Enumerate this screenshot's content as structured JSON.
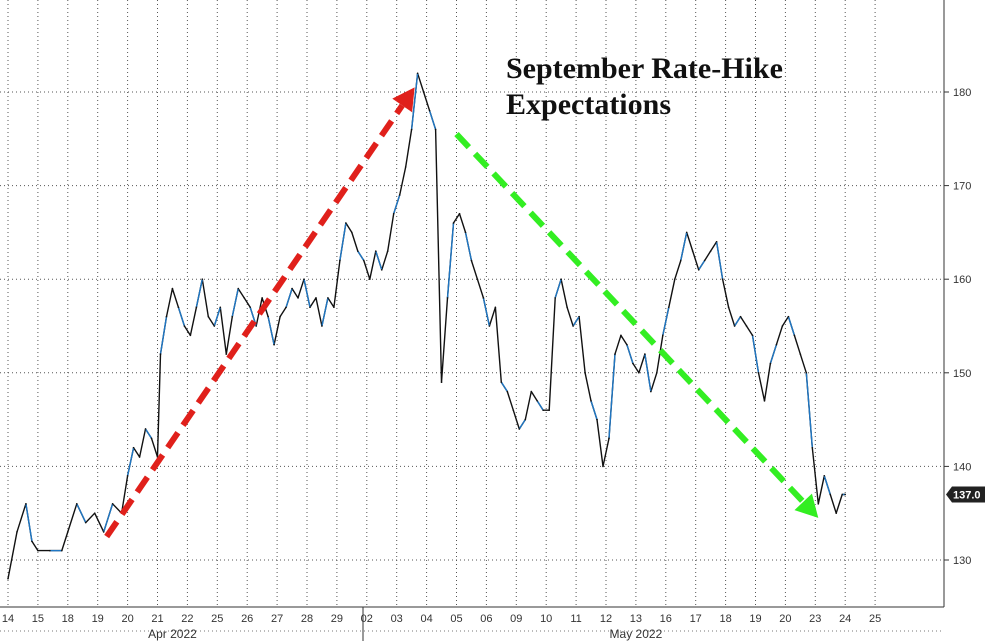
{
  "chart_data": {
    "type": "line",
    "title_lines": [
      "September Rate-Hike",
      "Expectations"
    ],
    "xlabel": "",
    "ylabel": "",
    "ylim": [
      125,
      190
    ],
    "yticks": [
      130,
      140,
      150,
      160,
      170,
      180,
      190
    ],
    "grid": true,
    "x_tick_labels": [
      "14",
      "15",
      "18",
      "19",
      "20",
      "21",
      "22",
      "25",
      "26",
      "27",
      "28",
      "29",
      "02",
      "03",
      "04",
      "05",
      "06",
      "09",
      "10",
      "11",
      "12",
      "13",
      "16",
      "17",
      "18",
      "19",
      "20",
      "23",
      "24",
      "25"
    ],
    "month_labels": [
      {
        "label": "Apr 2022",
        "at_tick": 5.5
      },
      {
        "label": "May 2022",
        "at_tick": 21
      }
    ],
    "last_value": 137.0,
    "last_value_label": "137.0",
    "colors": {
      "line_dark": "#111111",
      "line_blue": "#1f77c4",
      "grid": "#555555",
      "up_arrow": "#e0201b",
      "down_arrow": "#33ee22",
      "last_badge": "#222222"
    },
    "series": [
      {
        "values": [
          [
            0,
            128
          ],
          [
            0.3,
            133
          ],
          [
            0.6,
            136
          ],
          [
            0.8,
            132
          ],
          [
            1.0,
            131
          ],
          [
            1.4,
            131
          ],
          [
            1.8,
            131
          ],
          [
            2.0,
            133
          ],
          [
            2.3,
            136
          ],
          [
            2.6,
            134
          ],
          [
            2.9,
            135
          ],
          [
            3.2,
            133
          ],
          [
            3.5,
            136
          ],
          [
            3.8,
            135
          ],
          [
            4.0,
            139
          ],
          [
            4.2,
            142
          ],
          [
            4.4,
            141
          ],
          [
            4.6,
            144
          ],
          [
            4.8,
            143
          ],
          [
            5.0,
            141
          ],
          [
            5.1,
            152
          ],
          [
            5.3,
            156
          ],
          [
            5.5,
            159
          ],
          [
            5.7,
            157
          ],
          [
            5.9,
            155
          ],
          [
            6.1,
            154
          ],
          [
            6.3,
            157
          ],
          [
            6.5,
            160
          ],
          [
            6.7,
            156
          ],
          [
            6.9,
            155
          ],
          [
            7.1,
            157
          ],
          [
            7.3,
            152
          ],
          [
            7.5,
            156
          ],
          [
            7.7,
            159
          ],
          [
            7.9,
            158
          ],
          [
            8.1,
            157
          ],
          [
            8.3,
            155
          ],
          [
            8.5,
            158
          ],
          [
            8.7,
            156
          ],
          [
            8.9,
            153
          ],
          [
            9.1,
            156
          ],
          [
            9.3,
            157
          ],
          [
            9.5,
            159
          ],
          [
            9.7,
            158
          ],
          [
            9.9,
            160
          ],
          [
            10.1,
            157
          ],
          [
            10.3,
            158
          ],
          [
            10.5,
            155
          ],
          [
            10.7,
            158
          ],
          [
            10.9,
            157
          ],
          [
            11.1,
            162
          ],
          [
            11.3,
            166
          ],
          [
            11.5,
            165
          ],
          [
            11.7,
            163
          ],
          [
            11.9,
            162
          ],
          [
            12.1,
            160
          ],
          [
            12.3,
            163
          ],
          [
            12.5,
            161
          ],
          [
            12.7,
            163
          ],
          [
            12.9,
            167
          ],
          [
            13.1,
            169
          ],
          [
            13.3,
            172
          ],
          [
            13.5,
            176
          ],
          [
            13.7,
            182
          ],
          [
            13.9,
            180
          ],
          [
            14.1,
            178
          ],
          [
            14.3,
            176
          ],
          [
            14.5,
            149
          ],
          [
            14.7,
            158
          ],
          [
            14.9,
            166
          ],
          [
            15.1,
            167
          ],
          [
            15.3,
            165
          ],
          [
            15.5,
            162
          ],
          [
            15.7,
            160
          ],
          [
            15.9,
            158
          ],
          [
            16.1,
            155
          ],
          [
            16.3,
            157
          ],
          [
            16.5,
            149
          ],
          [
            16.7,
            148
          ],
          [
            16.9,
            146
          ],
          [
            17.1,
            144
          ],
          [
            17.3,
            145
          ],
          [
            17.5,
            148
          ],
          [
            17.7,
            147
          ],
          [
            17.9,
            146
          ],
          [
            18.1,
            146
          ],
          [
            18.3,
            158
          ],
          [
            18.5,
            160
          ],
          [
            18.7,
            157
          ],
          [
            18.9,
            155
          ],
          [
            19.1,
            156
          ],
          [
            19.3,
            150
          ],
          [
            19.5,
            147
          ],
          [
            19.7,
            145
          ],
          [
            19.9,
            140
          ],
          [
            20.1,
            143
          ],
          [
            20.3,
            152
          ],
          [
            20.5,
            154
          ],
          [
            20.7,
            153
          ],
          [
            20.9,
            151
          ],
          [
            21.1,
            150
          ],
          [
            21.3,
            152
          ],
          [
            21.5,
            148
          ],
          [
            21.7,
            150
          ],
          [
            21.9,
            154
          ],
          [
            22.1,
            157
          ],
          [
            22.3,
            160
          ],
          [
            22.5,
            162
          ],
          [
            22.7,
            165
          ],
          [
            22.9,
            163
          ],
          [
            23.1,
            161
          ],
          [
            23.3,
            162
          ],
          [
            23.5,
            163
          ],
          [
            23.7,
            164
          ],
          [
            23.9,
            160
          ],
          [
            24.1,
            157
          ],
          [
            24.3,
            155
          ],
          [
            24.5,
            156
          ],
          [
            24.7,
            155
          ],
          [
            24.9,
            154
          ],
          [
            25.1,
            150
          ],
          [
            25.3,
            147
          ],
          [
            25.5,
            151
          ],
          [
            25.7,
            153
          ],
          [
            25.9,
            155
          ],
          [
            26.1,
            156
          ],
          [
            26.3,
            154
          ],
          [
            26.5,
            152
          ],
          [
            26.7,
            150
          ],
          [
            26.9,
            142
          ],
          [
            27.1,
            136
          ],
          [
            27.3,
            139
          ],
          [
            27.5,
            137
          ],
          [
            27.7,
            135
          ],
          [
            27.9,
            137
          ],
          [
            28.0,
            137
          ]
        ]
      }
    ],
    "annotations": [
      {
        "type": "arrow",
        "style": "dashed",
        "color": "up_arrow",
        "from": [
          3.3,
          132.5
        ],
        "to": [
          13.6,
          180.5
        ]
      },
      {
        "type": "arrow",
        "style": "dashed",
        "color": "down_arrow",
        "from": [
          15.0,
          175.5
        ],
        "to": [
          27.1,
          134.5
        ]
      }
    ]
  }
}
